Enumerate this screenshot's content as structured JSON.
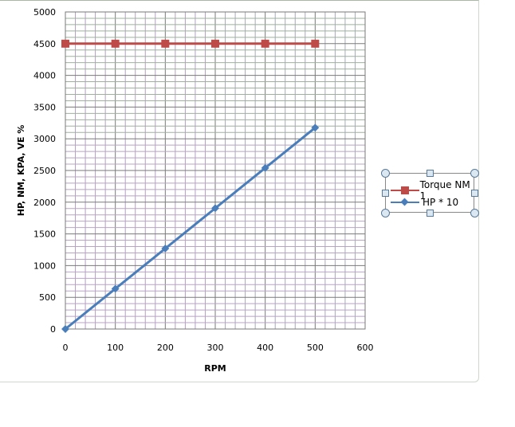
{
  "chart_data": {
    "type": "line",
    "title": "",
    "xlabel": "RPM",
    "ylabel": "HP, NM, KPA, VE %",
    "xlim": [
      0,
      600
    ],
    "ylim": [
      0,
      5000
    ],
    "x_ticks": [
      "0",
      "100",
      "200",
      "300",
      "400",
      "500",
      "600"
    ],
    "y_ticks": [
      "0",
      "500",
      "1000",
      "1500",
      "2000",
      "2500",
      "3000",
      "3500",
      "4000",
      "4500",
      "5000"
    ],
    "grid": true,
    "legend_position": "right",
    "x": [
      0,
      100,
      200,
      300,
      400,
      500
    ],
    "series": [
      {
        "name": "Torque NM 1",
        "values": [
          4500,
          4500,
          4500,
          4500,
          4500,
          4500
        ],
        "color": "#be4b48",
        "marker": "square"
      },
      {
        "name": "HP * 10",
        "values": [
          0,
          635,
          1270,
          1905,
          2540,
          3175
        ],
        "color": "#4a7ebb",
        "marker": "diamond"
      }
    ]
  }
}
